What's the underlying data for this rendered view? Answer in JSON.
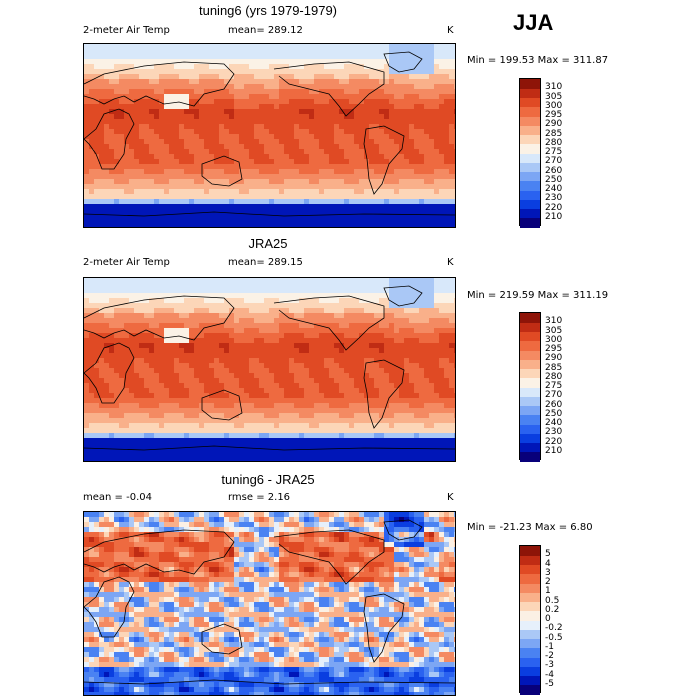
{
  "season": "JJA",
  "panels": [
    {
      "title": "tuning6 (yrs 1979-1979)",
      "left_label": "2-meter Air Temp",
      "center_label": "mean= 289.12",
      "unit": "K",
      "minmax": "Min = 199.53 Max = 311.87"
    },
    {
      "title": "JRA25",
      "left_label": "2-meter Air Temp",
      "center_label": "mean= 289.15",
      "unit": "K",
      "minmax": "Min = 219.59 Max = 311.19"
    },
    {
      "title": "tuning6 - JRA25",
      "left_label": "mean =   -0.04",
      "center_label": "rmse =    2.16",
      "unit": "K",
      "minmax": "Min = -21.23 Max =    6.80"
    }
  ],
  "chart_data": [
    {
      "type": "heatmap",
      "title": "tuning6 (yrs 1979-1979)",
      "variable": "2-meter Air Temp",
      "units": "K",
      "mean": 289.12,
      "min": 199.53,
      "max": 311.87,
      "colorbar_levels": [
        "210",
        "220",
        "230",
        "240",
        "250",
        "260",
        "270",
        "275",
        "280",
        "285",
        "290",
        "295",
        "300",
        "305",
        "310"
      ],
      "colorbar_colors": [
        "#08007a",
        "#0016b8",
        "#0a3ee0",
        "#2a62f0",
        "#4a82f2",
        "#7ca6f4",
        "#aac8f6",
        "#d8e8fa",
        "#fbf2e6",
        "#fcd6b8",
        "#f9b08a",
        "#f48a62",
        "#ee6a40",
        "#e04a24",
        "#c02c14",
        "#8e1408"
      ]
    },
    {
      "type": "heatmap",
      "title": "JRA25",
      "variable": "2-meter Air Temp",
      "units": "K",
      "mean": 289.15,
      "min": 219.59,
      "max": 311.19,
      "colorbar_levels": [
        "210",
        "220",
        "230",
        "240",
        "250",
        "260",
        "270",
        "275",
        "280",
        "285",
        "290",
        "295",
        "300",
        "305",
        "310"
      ],
      "colorbar_colors": [
        "#08007a",
        "#0016b8",
        "#0a3ee0",
        "#2a62f0",
        "#4a82f2",
        "#7ca6f4",
        "#aac8f6",
        "#d8e8fa",
        "#fbf2e6",
        "#fcd6b8",
        "#f9b08a",
        "#f48a62",
        "#ee6a40",
        "#e04a24",
        "#c02c14",
        "#8e1408"
      ]
    },
    {
      "type": "heatmap",
      "title": "tuning6 - JRA25",
      "units": "K",
      "mean": -0.04,
      "rmse": 2.16,
      "min": -21.23,
      "max": 6.8,
      "colorbar_levels": [
        "-5",
        "-4",
        "-3",
        "-2",
        "-1",
        "-0.5",
        "-0.2",
        "0",
        "0.2",
        "0.5",
        "1",
        "2",
        "3",
        "4",
        "5"
      ],
      "colorbar_colors": [
        "#08007a",
        "#0016b8",
        "#0a3ee0",
        "#2a62f0",
        "#4a82f2",
        "#7ca6f4",
        "#aac8f6",
        "#e6f0fb",
        "#fbf0e4",
        "#fcd6b8",
        "#f9b08a",
        "#f48a62",
        "#ee6a40",
        "#e04a24",
        "#c02c14",
        "#8e1408"
      ]
    }
  ]
}
